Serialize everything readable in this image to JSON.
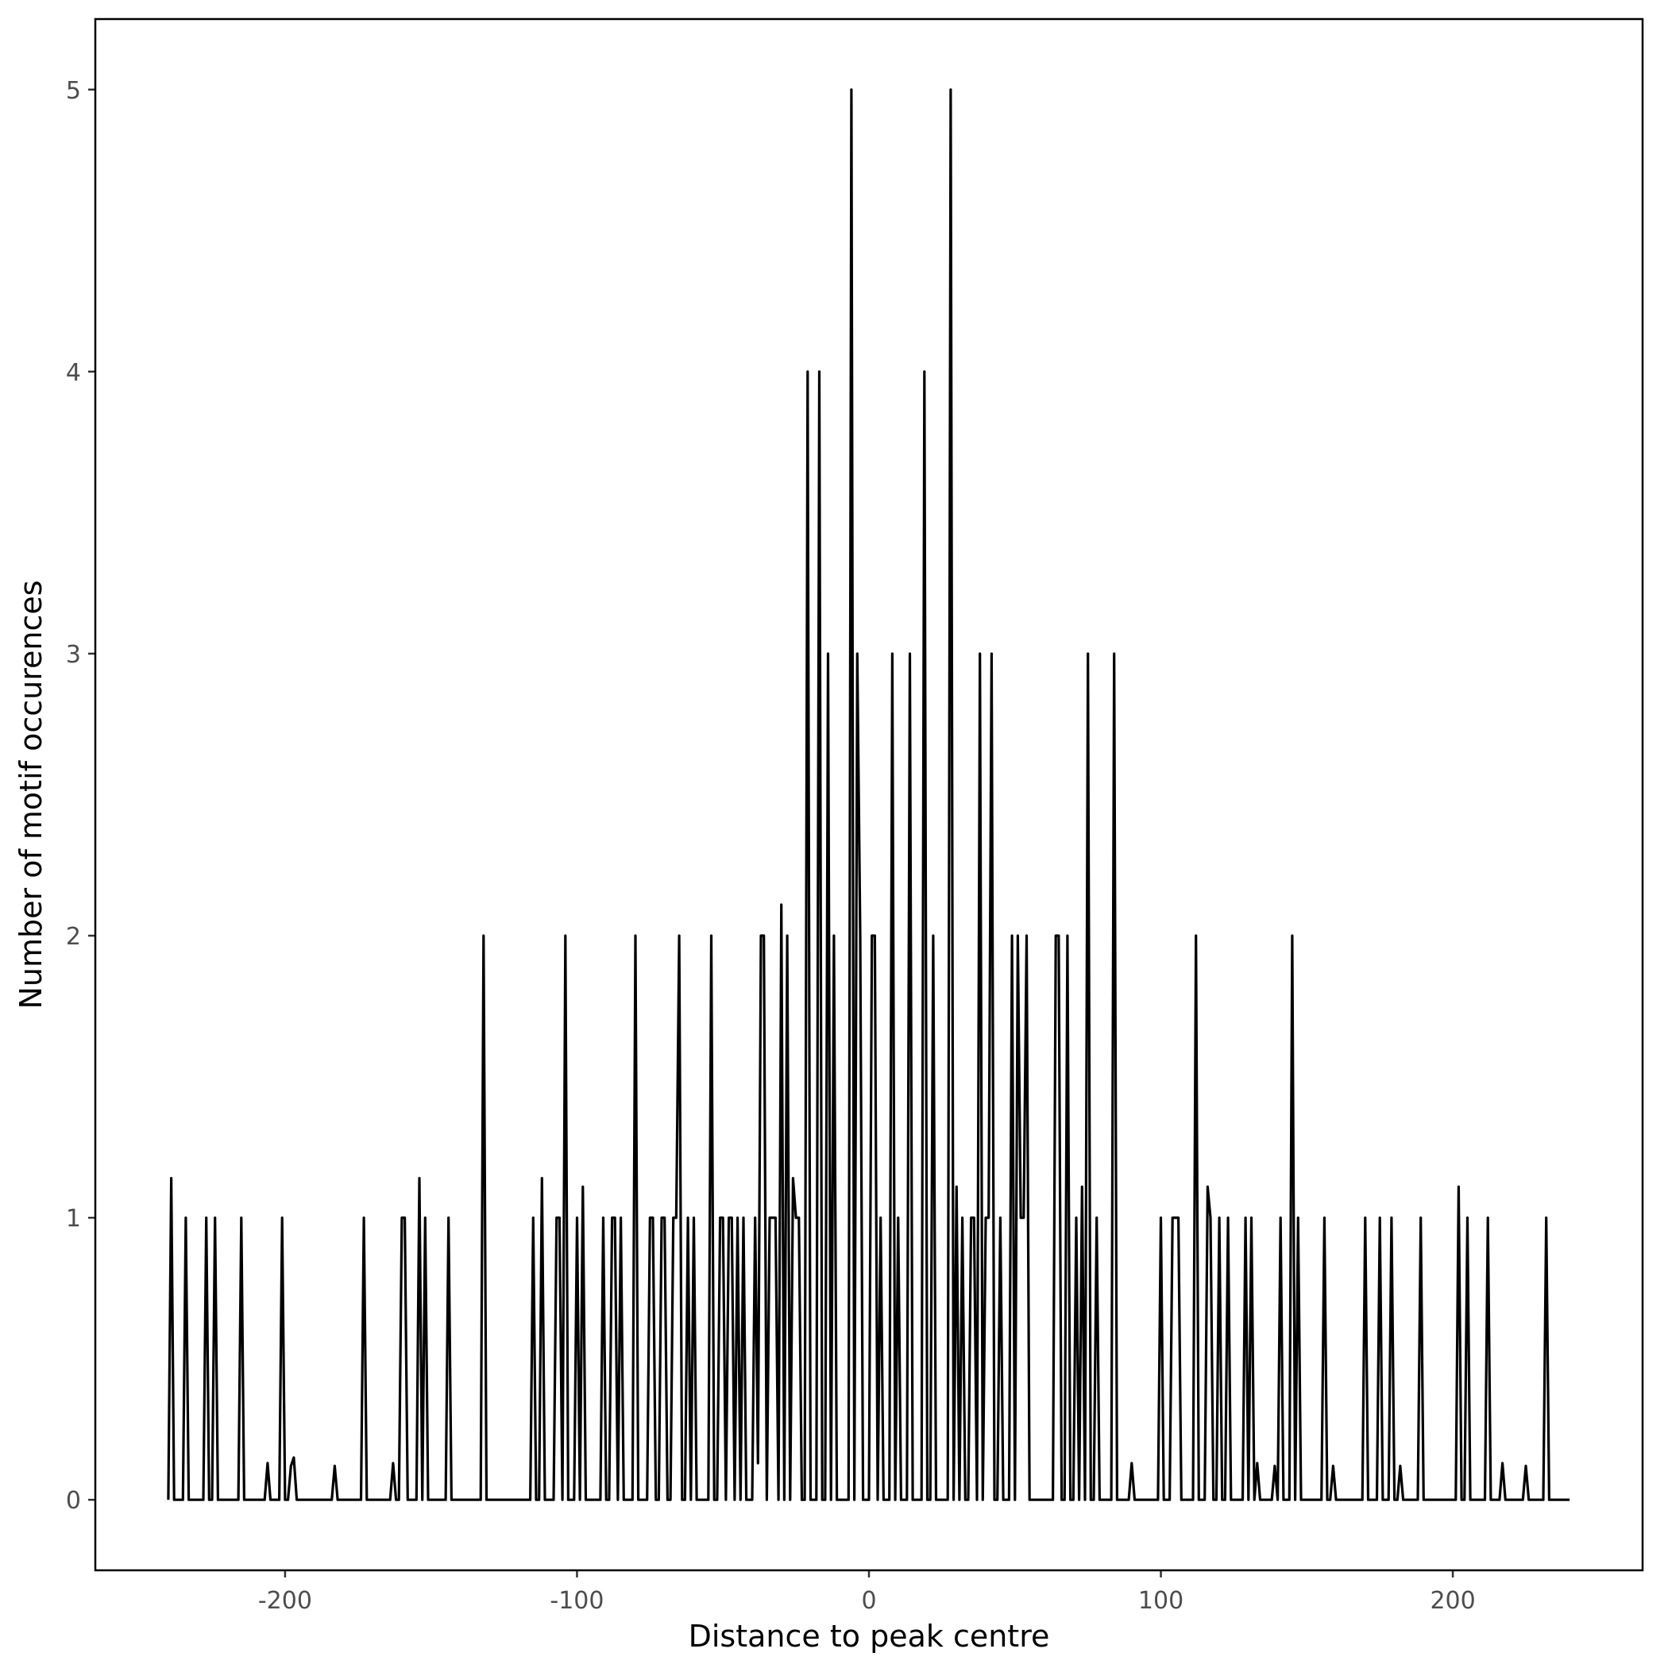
{
  "chart_data": {
    "type": "line",
    "title": "",
    "xlabel": "Distance to peak centre",
    "ylabel": "Number of motif occurences",
    "xlim": [
      -265,
      265
    ],
    "ylim": [
      -0.25,
      5.25
    ],
    "xticks": [
      -200,
      -100,
      0,
      100,
      200
    ],
    "xtick_labels": [
      "-200",
      "-100",
      "0",
      "100",
      "200"
    ],
    "yticks": [
      0,
      1,
      2,
      3,
      4,
      5
    ],
    "ytick_labels": [
      "0",
      "1",
      "2",
      "3",
      "4",
      "5"
    ],
    "grid": false,
    "line_color": "#000000",
    "x_start": -240,
    "x_end": 240,
    "baseline": 0,
    "spikes": [
      [
        -239,
        1.14
      ],
      [
        -234,
        1
      ],
      [
        -227,
        1
      ],
      [
        -224,
        1
      ],
      [
        -215,
        1
      ],
      [
        -206,
        0.13
      ],
      [
        -201,
        1
      ],
      [
        -198,
        0.12
      ],
      [
        -197,
        0.15
      ],
      [
        -183,
        0.12
      ],
      [
        -173,
        1
      ],
      [
        -163,
        0.13
      ],
      [
        -160,
        1
      ],
      [
        -159,
        1
      ],
      [
        -154,
        1.14
      ],
      [
        -152,
        1
      ],
      [
        -144,
        1
      ],
      [
        -132,
        2
      ],
      [
        -115,
        1
      ],
      [
        -112,
        1.14
      ],
      [
        -107,
        1
      ],
      [
        -106,
        1
      ],
      [
        -104,
        2
      ],
      [
        -100,
        1
      ],
      [
        -98,
        1.11
      ],
      [
        -91,
        1
      ],
      [
        -88,
        1
      ],
      [
        -87,
        1
      ],
      [
        -85,
        1
      ],
      [
        -80,
        2
      ],
      [
        -75,
        1
      ],
      [
        -74,
        1
      ],
      [
        -71,
        1
      ],
      [
        -70,
        1
      ],
      [
        -67,
        1
      ],
      [
        -66,
        1
      ],
      [
        -65,
        2
      ],
      [
        -62,
        1
      ],
      [
        -60,
        1
      ],
      [
        -54,
        2
      ],
      [
        -51,
        1
      ],
      [
        -50,
        1
      ],
      [
        -48,
        1
      ],
      [
        -47,
        1
      ],
      [
        -45,
        1
      ],
      [
        -43,
        1
      ],
      [
        -39,
        1
      ],
      [
        -38,
        0.13
      ],
      [
        -37,
        2
      ],
      [
        -36,
        2
      ],
      [
        -34,
        1
      ],
      [
        -33,
        1
      ],
      [
        -32,
        1
      ],
      [
        -30,
        2.11
      ],
      [
        -28,
        2
      ],
      [
        -26,
        1.14
      ],
      [
        -25,
        1
      ],
      [
        -24,
        1
      ],
      [
        -21,
        4
      ],
      [
        -17,
        4
      ],
      [
        -14,
        3
      ],
      [
        -12,
        2
      ],
      [
        -6,
        5
      ],
      [
        -4,
        3
      ],
      [
        -3,
        2
      ],
      [
        1,
        2
      ],
      [
        2,
        2
      ],
      [
        4,
        1
      ],
      [
        8,
        3
      ],
      [
        10,
        1
      ],
      [
        14,
        3
      ],
      [
        19,
        4
      ],
      [
        22,
        2
      ],
      [
        28,
        5
      ],
      [
        30,
        1.11
      ],
      [
        32,
        1
      ],
      [
        35,
        1
      ],
      [
        36,
        1
      ],
      [
        38,
        3
      ],
      [
        40,
        1
      ],
      [
        41,
        1
      ],
      [
        42,
        3
      ],
      [
        45,
        1
      ],
      [
        49,
        2
      ],
      [
        51,
        2
      ],
      [
        52,
        1
      ],
      [
        53,
        1
      ],
      [
        54,
        2
      ],
      [
        64,
        2
      ],
      [
        65,
        2
      ],
      [
        68,
        2
      ],
      [
        71,
        1
      ],
      [
        73,
        1.11
      ],
      [
        75,
        3
      ],
      [
        78,
        1
      ],
      [
        84,
        3
      ],
      [
        90,
        0.13
      ],
      [
        100,
        1
      ],
      [
        104,
        1
      ],
      [
        105,
        1
      ],
      [
        106,
        1
      ],
      [
        112,
        2
      ],
      [
        116,
        1.11
      ],
      [
        117,
        1
      ],
      [
        120,
        1
      ],
      [
        123,
        1
      ],
      [
        129,
        1
      ],
      [
        131,
        1
      ],
      [
        133,
        0.13
      ],
      [
        139,
        0.12
      ],
      [
        141,
        1
      ],
      [
        145,
        2
      ],
      [
        147,
        1
      ],
      [
        156,
        1
      ],
      [
        159,
        0.12
      ],
      [
        170,
        1
      ],
      [
        175,
        1
      ],
      [
        179,
        1
      ],
      [
        182,
        0.12
      ],
      [
        189,
        1
      ],
      [
        202,
        1.11
      ],
      [
        205,
        1
      ],
      [
        212,
        1
      ],
      [
        217,
        0.13
      ],
      [
        225,
        0.12
      ],
      [
        232,
        1
      ]
    ]
  }
}
